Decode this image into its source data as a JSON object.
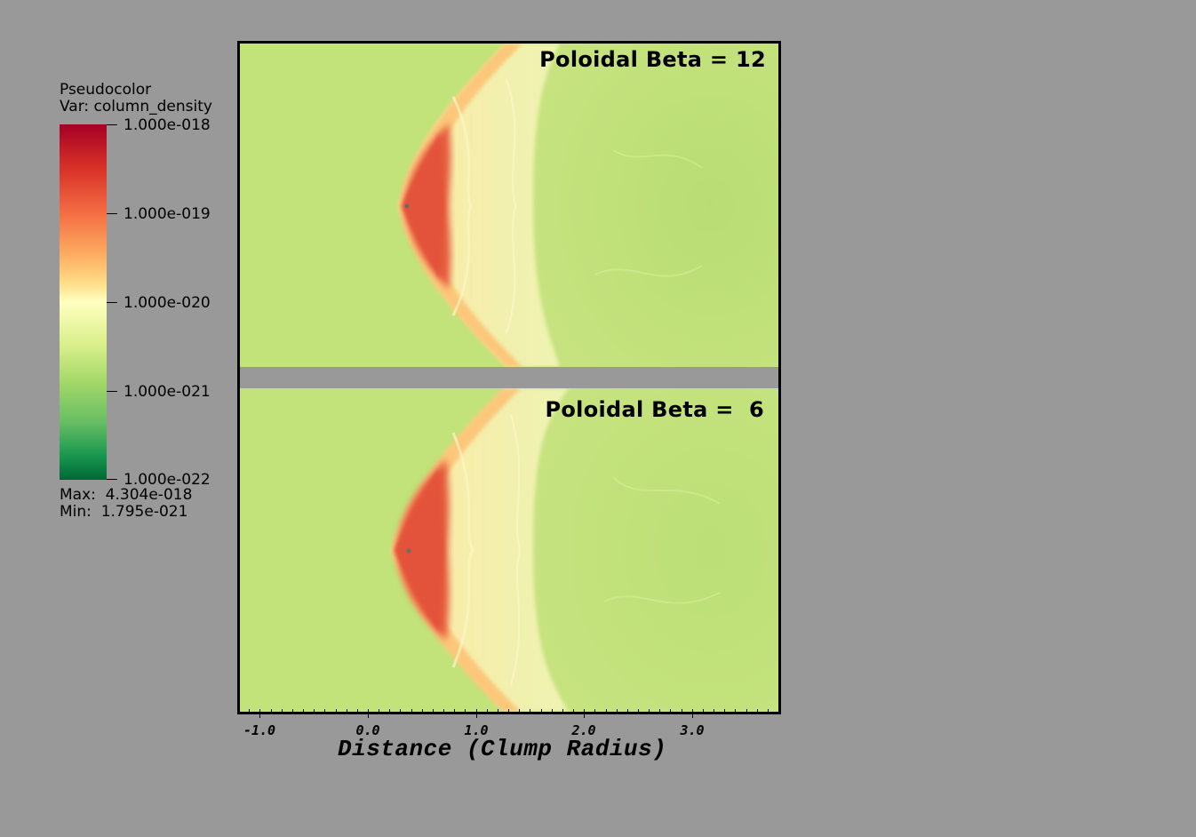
{
  "legend": {
    "title_line1": "Pseudocolor",
    "title_line2": "Var: column_density",
    "tick_labels": [
      "1.000e-018",
      "1.000e-019",
      "1.000e-020",
      "1.000e-021",
      "1.000e-022"
    ],
    "max_line": "Max:  4.304e-018",
    "min_line": "Min:  1.795e-021",
    "colormap": [
      "#a50026",
      "#d73027",
      "#f46d43",
      "#fdae61",
      "#fee08b",
      "#ffffbf",
      "#d9ef8b",
      "#a6d96a",
      "#66bd63",
      "#1a9850",
      "#006837"
    ]
  },
  "panels": [
    {
      "title": "Poloidal Beta = 12"
    },
    {
      "title": "Poloidal Beta =  6"
    }
  ],
  "x_axis": {
    "label": "Distance (Clump Radius)",
    "tick_labels": [
      "-1.0",
      "0.0",
      "1.0",
      "2.0",
      "3.0"
    ]
  },
  "colors": {
    "background": "#999999",
    "ambient": "#c2e37a",
    "shock_core": "#e0533a"
  }
}
